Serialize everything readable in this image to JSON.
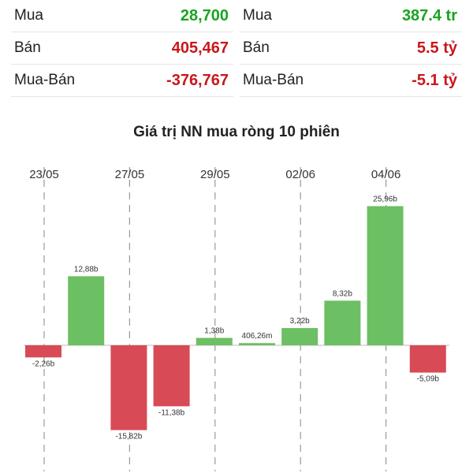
{
  "stats": {
    "left": [
      {
        "label": "Mua",
        "value": "28,700",
        "color": "green"
      },
      {
        "label": "Bán",
        "value": "405,467",
        "color": "red"
      },
      {
        "label": "Mua-Bán",
        "value": "-376,767",
        "color": "red"
      }
    ],
    "right": [
      {
        "label": "Mua",
        "value": "387.4 tr",
        "color": "green"
      },
      {
        "label": "Bán",
        "value": "5.5 tỷ",
        "color": "red"
      },
      {
        "label": "Mua-Bán",
        "value": "-5.1 tỷ",
        "color": "red"
      }
    ]
  },
  "colors": {
    "positive": "#6cbf62",
    "negative": "#d84a55",
    "gridline": "#999999",
    "axis": "#bbbbbb"
  },
  "chart_data": {
    "type": "bar",
    "title": "Giá trị NN mua ròng 10 phiên",
    "x_tick_labels": [
      "23/05",
      "27/05",
      "29/05",
      "02/06",
      "04/06"
    ],
    "values": [
      -2.26,
      12.88,
      -15.82,
      -11.38,
      1.38,
      0.40626,
      3.22,
      8.32,
      25.96,
      -5.09
    ],
    "data_labels": [
      "-2,26b",
      "12,88b",
      "-15,82b",
      "-11,38b",
      "1,38b",
      "406,26m",
      "3,22b",
      "8,32b",
      "25,96b",
      "-5,09b"
    ],
    "unit": "b",
    "grid": "vertical dashed at labeled dates"
  }
}
